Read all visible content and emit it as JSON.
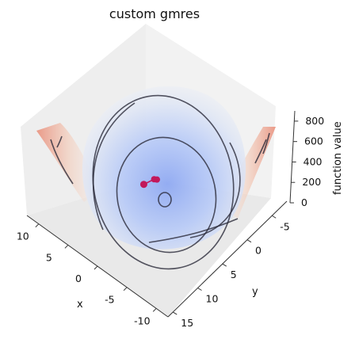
{
  "chart_data": {
    "type": "surface3d",
    "title": "custom gmres",
    "xlabel": "x",
    "ylabel": "y",
    "zlabel": "function value",
    "x_ticks": [
      10,
      5,
      0,
      -5,
      -10
    ],
    "y_ticks": [
      -5,
      0,
      5,
      10,
      15
    ],
    "z_ticks": [
      0,
      200,
      400,
      600,
      800
    ],
    "xlim": [
      -12,
      12
    ],
    "ylim": [
      -8,
      16
    ],
    "zlim": [
      0,
      900
    ],
    "grid": false,
    "colormap": "coolwarm",
    "surface": "quadratic bowl",
    "contour_color": "#2a2a3a",
    "optimizer_path": {
      "color": "#c2185b",
      "points": [
        {
          "x": 1.0,
          "y": 4.5
        },
        {
          "x": 0.5,
          "y": 3.0
        },
        {
          "x": 0.2,
          "y": 2.8
        }
      ]
    }
  }
}
